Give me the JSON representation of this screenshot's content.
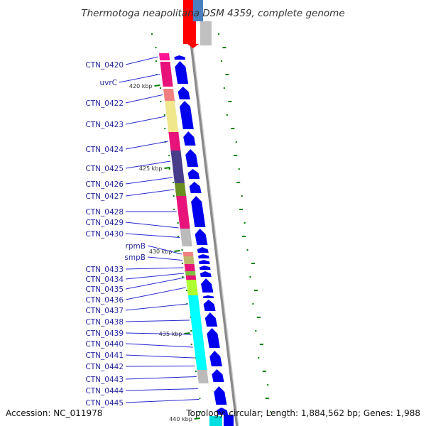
{
  "title": "Thermotoga neapolitana DSM 4359, complete genome",
  "accession": "Accession: NC_011978",
  "topology": "Topology: circular; Length: 1,884,562 bp; Genes: 1,988",
  "ticks": [
    "420 kbp",
    "425 kbp",
    "430 kbp",
    "435 kbp",
    "440 kbp"
  ],
  "genes": [
    {
      "label": "CTN_0420",
      "color": "#ff1493"
    },
    {
      "label": "uvrC",
      "color": "#e8137a"
    },
    {
      "label": "CTN_0422",
      "color": "#f08080"
    },
    {
      "label": "CTN_0423",
      "color": "#f0e68c"
    },
    {
      "label": "CTN_0424",
      "color": "#e8137a"
    },
    {
      "label": "CTN_0425",
      "color": "#483d8b"
    },
    {
      "label": "CTN_0426",
      "color": "#483d8b"
    },
    {
      "label": "CTN_0427",
      "color": "#6b8e23"
    },
    {
      "label": "CTN_0428",
      "color": "#e8137a"
    },
    {
      "label": "CTN_0429",
      "color": "#e8137a"
    },
    {
      "label": "CTN_0430",
      "color": "#bbbbbb"
    },
    {
      "label": "rpmB",
      "color": "#f08080"
    },
    {
      "label": "smpB",
      "color": "#bdb76b"
    },
    {
      "label": "CTN_0433",
      "color": "#e8137a"
    },
    {
      "label": "CTN_0434",
      "color": "#7fbf3f"
    },
    {
      "label": "CTN_0435",
      "color": "#e8137a"
    },
    {
      "label": "CTN_0436",
      "color": "#adff2f"
    },
    {
      "label": "CTN_0437",
      "color": "#00ffff"
    },
    {
      "label": "CTN_0438",
      "color": "#00ffff"
    },
    {
      "label": "CTN_0439",
      "color": "#00ffff"
    },
    {
      "label": "CTN_0440",
      "color": "#00ffff"
    },
    {
      "label": "CTN_0441",
      "color": "#00ffff"
    },
    {
      "label": "CTN_0442",
      "color": "#00ffff"
    },
    {
      "label": "CTN_0443",
      "color": "#bbbbbb"
    },
    {
      "label": "CTN_0444",
      "color": "#ffffff"
    },
    {
      "label": "CTN_0445",
      "color": "#ffffff"
    }
  ],
  "colors": {
    "cds": "#0000ee",
    "backbone": "#888888",
    "gc": "#008000"
  }
}
